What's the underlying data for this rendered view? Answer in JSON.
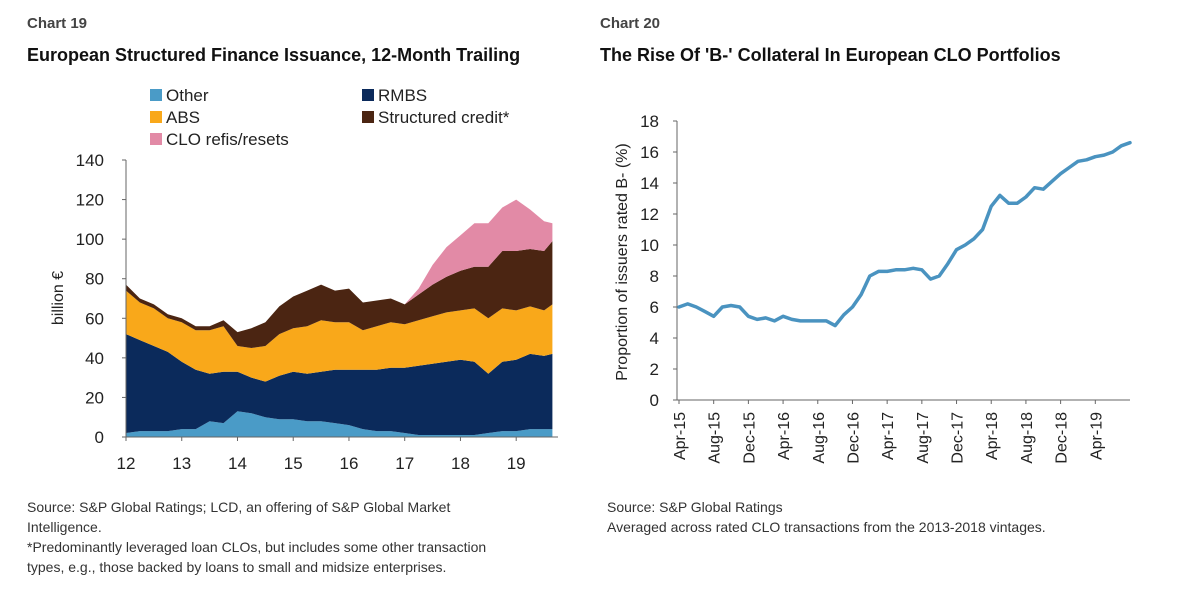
{
  "left": {
    "number": "Chart 19",
    "title": "European Structured Finance Issuance, 12-Month Trailing",
    "source_line1": "Source: S&P Global Ratings; LCD, an offering of S&P Global Market",
    "source_line2": "Intelligence.",
    "footnote_line1": "*Predominantly leveraged loan CLOs, but includes some other transaction",
    "footnote_line2": "types, e.g., those backed by loans to small and midsize enterprises."
  },
  "right": {
    "number": "Chart 20",
    "title": "The Rise Of 'B-' Collateral In European CLO Portfolios",
    "source_line1": "Source: S&P Global Ratings",
    "source_line2": "Averaged across rated CLO transactions from the 2013-2018 vintages."
  },
  "chart_data": [
    {
      "type": "area",
      "stacked": true,
      "title": "European Structured Finance Issuance, 12-Month Trailing",
      "ylabel": "billion €",
      "xlabel": "",
      "ylim": [
        0,
        140
      ],
      "xlim": [
        2012,
        2019.75
      ],
      "yticks": [
        0,
        20,
        40,
        60,
        80,
        100,
        120,
        140
      ],
      "xticks": [
        12,
        13,
        14,
        15,
        16,
        17,
        18,
        19
      ],
      "grid": false,
      "legend": [
        "Other",
        "RMBS",
        "ABS",
        "Structured credit*",
        "CLO refis/resets"
      ],
      "x": [
        2012.0,
        2012.25,
        2012.5,
        2012.75,
        2013.0,
        2013.25,
        2013.5,
        2013.75,
        2014.0,
        2014.25,
        2014.5,
        2014.75,
        2015.0,
        2015.25,
        2015.5,
        2015.75,
        2016.0,
        2016.25,
        2016.5,
        2016.75,
        2017.0,
        2017.25,
        2017.5,
        2017.75,
        2018.0,
        2018.25,
        2018.5,
        2018.75,
        2019.0,
        2019.25,
        2019.5,
        2019.65
      ],
      "series": [
        {
          "name": "Other",
          "color": "#4a9bc7",
          "values": [
            2,
            3,
            3,
            3,
            4,
            4,
            8,
            7,
            13,
            12,
            10,
            9,
            9,
            8,
            8,
            7,
            6,
            4,
            3,
            3,
            2,
            1,
            1,
            1,
            1,
            1,
            2,
            3,
            3,
            4,
            4,
            4
          ]
        },
        {
          "name": "RMBS",
          "color": "#0b2a5b",
          "values": [
            50,
            46,
            43,
            40,
            34,
            30,
            24,
            26,
            20,
            18,
            18,
            22,
            24,
            24,
            25,
            27,
            28,
            30,
            31,
            32,
            33,
            35,
            36,
            37,
            38,
            37,
            30,
            35,
            36,
            38,
            37,
            38
          ]
        },
        {
          "name": "ABS",
          "color": "#f9a81a",
          "values": [
            22,
            19,
            19,
            17,
            20,
            20,
            22,
            23,
            13,
            15,
            18,
            21,
            22,
            24,
            26,
            24,
            24,
            20,
            22,
            23,
            22,
            23,
            24,
            25,
            25,
            27,
            28,
            27,
            25,
            24,
            23,
            25
          ]
        },
        {
          "name": "Structured credit*",
          "color": "#4b2512",
          "values": [
            3,
            2,
            2,
            2,
            2,
            2,
            2,
            3,
            7,
            10,
            12,
            14,
            16,
            18,
            18,
            16,
            17,
            14,
            13,
            12,
            10,
            13,
            16,
            18,
            20,
            21,
            26,
            29,
            30,
            29,
            30,
            32
          ]
        },
        {
          "name": "CLO refis/resets",
          "color": "#e28aa6",
          "values": [
            0,
            0,
            0,
            0,
            0,
            0,
            0,
            0,
            0,
            0,
            0,
            0,
            0,
            0,
            0,
            0,
            0,
            0,
            0,
            0,
            0,
            3,
            10,
            15,
            18,
            22,
            22,
            22,
            26,
            20,
            15,
            9
          ]
        }
      ]
    },
    {
      "type": "line",
      "title": "The Rise Of 'B-' Collateral In European CLO Portfolios",
      "ylabel": "Proportion of issuers rated B- (%)",
      "xlabel": "",
      "ylim": [
        0,
        18
      ],
      "yticks": [
        0,
        2,
        4,
        6,
        8,
        10,
        12,
        14,
        16,
        18
      ],
      "grid": false,
      "categories": [
        "Apr-15",
        "May-15",
        "Jun-15",
        "Jul-15",
        "Aug-15",
        "Sep-15",
        "Oct-15",
        "Nov-15",
        "Dec-15",
        "Jan-16",
        "Feb-16",
        "Mar-16",
        "Apr-16",
        "May-16",
        "Jun-16",
        "Jul-16",
        "Aug-16",
        "Sep-16",
        "Oct-16",
        "Nov-16",
        "Dec-16",
        "Jan-17",
        "Feb-17",
        "Mar-17",
        "Apr-17",
        "May-17",
        "Jun-17",
        "Jul-17",
        "Aug-17",
        "Sep-17",
        "Oct-17",
        "Nov-17",
        "Dec-17",
        "Jan-18",
        "Feb-18",
        "Mar-18",
        "Apr-18",
        "May-18",
        "Jun-18",
        "Jul-18",
        "Aug-18",
        "Sep-18",
        "Oct-18",
        "Nov-18",
        "Dec-18",
        "Jan-19",
        "Feb-19",
        "Mar-19",
        "Apr-19",
        "May-19",
        "Jun-19",
        "Jul-19",
        "Aug-19"
      ],
      "tick_labels": [
        "Apr-15",
        "Aug-15",
        "Dec-15",
        "Apr-16",
        "Aug-16",
        "Dec-16",
        "Apr-17",
        "Aug-17",
        "Dec-17",
        "Apr-18",
        "Aug-18",
        "Dec-18",
        "Apr-19"
      ],
      "series": [
        {
          "color": "#4a93c0",
          "values": [
            6.0,
            6.2,
            6.0,
            5.7,
            5.4,
            6.0,
            6.1,
            6.0,
            5.4,
            5.2,
            5.3,
            5.1,
            5.4,
            5.2,
            5.1,
            5.1,
            5.1,
            5.1,
            4.8,
            5.5,
            6.0,
            6.8,
            8.0,
            8.3,
            8.3,
            8.4,
            8.4,
            8.5,
            8.4,
            7.8,
            8.0,
            8.8,
            9.7,
            10.0,
            10.4,
            11.0,
            12.5,
            13.2,
            12.7,
            12.7,
            13.1,
            13.7,
            13.6,
            14.1,
            14.6,
            15.0,
            15.4,
            15.5,
            15.7,
            15.8,
            16.0,
            16.4,
            16.6
          ]
        }
      ]
    }
  ]
}
